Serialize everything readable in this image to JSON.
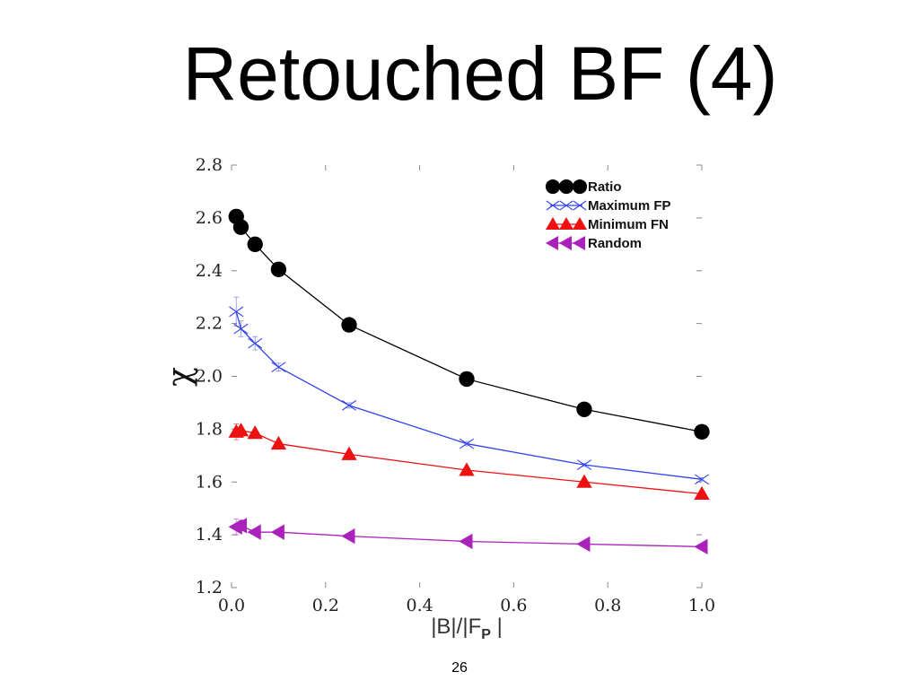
{
  "slide": {
    "title": "Retouched BF (4)",
    "number": "26"
  },
  "chart_data": {
    "type": "line",
    "xlabel": "|B|/|F_P |",
    "xlabel_parts": {
      "pre": "|B|/|F",
      "sub": "P",
      "post": " |"
    },
    "ylabel": "χ",
    "xlim": [
      0.0,
      1.0
    ],
    "ylim": [
      1.2,
      2.8
    ],
    "xticks": [
      0.0,
      0.2,
      0.4,
      0.6,
      0.8,
      1.0
    ],
    "yticks": [
      1.2,
      1.4,
      1.6,
      1.8,
      2.0,
      2.2,
      2.4,
      2.6,
      2.8
    ],
    "xtick_labels": [
      "0.0",
      "0.2",
      "0.4",
      "0.6",
      "0.8",
      "1.0"
    ],
    "ytick_labels": [
      "1.2",
      "1.4",
      "1.6",
      "1.8",
      "2.0",
      "2.2",
      "2.4",
      "2.6",
      "2.8"
    ],
    "grid": false,
    "legend_position": "top-right",
    "series": [
      {
        "name": "Ratio",
        "color": "#000000",
        "marker": "circle",
        "x": [
          0.01,
          0.02,
          0.05,
          0.1,
          0.25,
          0.5,
          0.75,
          1.0
        ],
        "y": [
          2.605,
          2.565,
          2.5,
          2.405,
          2.195,
          1.99,
          1.875,
          1.79
        ]
      },
      {
        "name": "Maximum FP",
        "color": "#3344ee",
        "marker": "x",
        "x": [
          0.01,
          0.02,
          0.05,
          0.1,
          0.25,
          0.5,
          0.75,
          1.0
        ],
        "y": [
          2.245,
          2.18,
          2.125,
          2.035,
          1.89,
          1.745,
          1.665,
          1.61
        ],
        "err": [
          0.055,
          0.03,
          0.025,
          0.015,
          0.01,
          0.008,
          0.006,
          0.006
        ]
      },
      {
        "name": "Minimum FN",
        "color": "#ee1111",
        "marker": "triangle-up",
        "x": [
          0.01,
          0.02,
          0.05,
          0.1,
          0.25,
          0.5,
          0.75,
          1.0
        ],
        "y": [
          1.79,
          1.795,
          1.785,
          1.745,
          1.705,
          1.645,
          1.6,
          1.555
        ],
        "err": [
          0.03,
          0.015,
          0.01,
          0.005,
          0.004,
          0.004,
          0.004,
          0.004
        ]
      },
      {
        "name": "Random",
        "color": "#aa22bb",
        "marker": "triangle-left",
        "x": [
          0.01,
          0.02,
          0.05,
          0.1,
          0.25,
          0.5,
          0.75,
          1.0
        ],
        "y": [
          1.43,
          1.435,
          1.41,
          1.41,
          1.395,
          1.375,
          1.365,
          1.355
        ],
        "err": [
          0.03,
          0.02,
          0.01,
          0.005,
          0.004,
          0.004,
          0.004,
          0.004
        ]
      }
    ]
  }
}
